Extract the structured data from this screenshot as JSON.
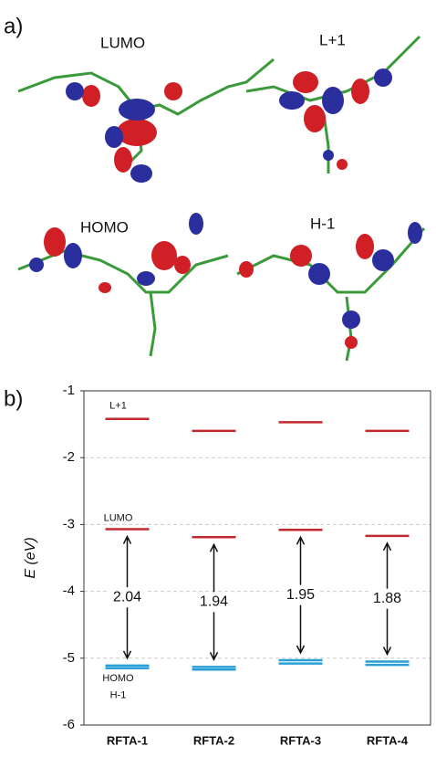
{
  "panel_a": {
    "label": "a)",
    "orbitals": [
      "LUMO",
      "L+1",
      "HOMO",
      "H-1"
    ]
  },
  "chart_data": {
    "type": "levels",
    "label": "b)",
    "ylabel": "E (eV)",
    "categories": [
      "RFTA-1",
      "RFTA-2",
      "RFTA-3",
      "RFTA-4"
    ],
    "series": [
      {
        "name": "L+1",
        "color": "#c0282d",
        "values": [
          -1.42,
          -1.6,
          -1.47,
          -1.6
        ]
      },
      {
        "name": "LUMO",
        "color": "#c0282d",
        "values": [
          -3.07,
          -3.19,
          -3.08,
          -3.17
        ]
      },
      {
        "name": "HOMO",
        "color": "#2a9fd6",
        "values": [
          -5.11,
          -5.13,
          -5.03,
          -5.05
        ]
      },
      {
        "name": "H-1",
        "color": "#2a9fd6",
        "values": [
          -5.15,
          -5.17,
          -5.08,
          -5.1
        ]
      }
    ],
    "gaps": [
      2.04,
      1.94,
      1.95,
      1.88
    ],
    "ylim": [
      -6,
      -1
    ],
    "yticks": [
      -6,
      -5,
      -4,
      -3,
      -2,
      -1
    ],
    "grid": true
  }
}
